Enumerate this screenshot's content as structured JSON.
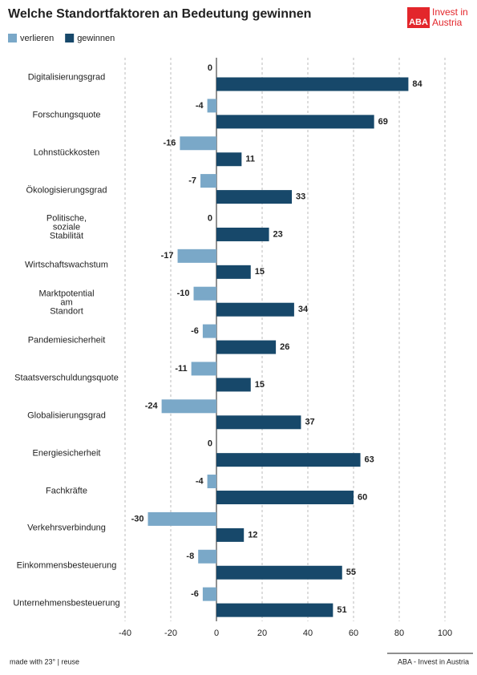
{
  "chart_data": {
    "type": "bar",
    "orientation": "horizontal",
    "title": "Welche Standortfaktoren an Bedeutung gewinnen",
    "categories": [
      "Digitalisierungsgrad",
      "Forschungsquote",
      "Lohnstückkosten",
      "Ökologisierungsgrad",
      "Politische,\nsoziale\nStabilität",
      "Wirtschaftswachstum",
      "Marktpotential\nam\nStandort",
      "Pandemiesicherheit",
      "Staatsverschuldungsquote",
      "Globalisierungsgrad",
      "Energiesicherheit",
      "Fachkräfte",
      "Verkehrsverbindung",
      "Einkommensbesteuerung",
      "Unternehmensbesteuerung"
    ],
    "series": [
      {
        "name": "verlieren",
        "color": "#7aa8c8",
        "values": [
          0,
          -4,
          -16,
          -7,
          0,
          -17,
          -10,
          -6,
          -11,
          -24,
          0,
          -4,
          -30,
          -8,
          -6
        ]
      },
      {
        "name": "gewinnen",
        "color": "#17486a",
        "values": [
          84,
          69,
          11,
          33,
          23,
          15,
          34,
          26,
          15,
          37,
          63,
          60,
          12,
          55,
          51
        ]
      }
    ],
    "xlim": [
      -40,
      100
    ],
    "xticks": [
      -40,
      -20,
      0,
      20,
      40,
      60,
      80,
      100
    ],
    "grid": true,
    "legend": "top-left"
  },
  "logo": {
    "mark": "ABA",
    "text": "Invest in\nAustria"
  },
  "footer": {
    "left": "made with 23° | reuse",
    "right": "ABA - Invest in Austria"
  }
}
